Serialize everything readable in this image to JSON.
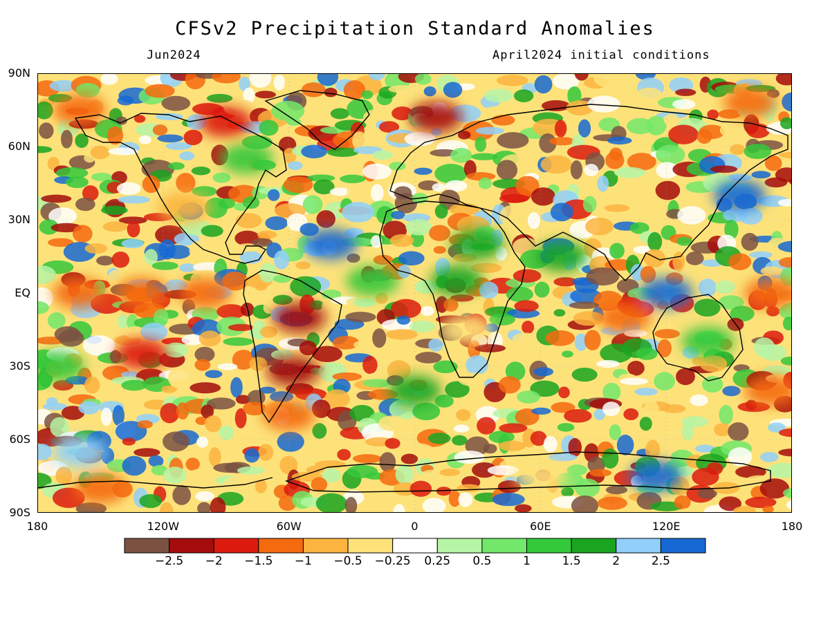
{
  "header": {
    "title": "CFSv2 Precipitation Standard Anomalies",
    "month": "Jun2024",
    "initial_conditions": "April2024 initial conditions"
  },
  "axes": {
    "lat_labels": [
      "90N",
      "60N",
      "30N",
      "EQ",
      "30S",
      "60S",
      "90S"
    ],
    "lat_values": [
      90,
      60,
      30,
      0,
      -30,
      -60,
      -90
    ],
    "lon_labels": [
      "180",
      "120W",
      "60W",
      "0",
      "60E",
      "120E",
      "180"
    ],
    "lon_values": [
      -180,
      -120,
      -60,
      0,
      60,
      120,
      180
    ]
  },
  "colorbar": {
    "colors": [
      "#7b5142",
      "#a50c0c",
      "#dc1b0e",
      "#f46a0f",
      "#fbb43f",
      "#fde27a",
      "#ffffff",
      "#b6f4a6",
      "#72e76a",
      "#34c83b",
      "#1aa521",
      "#90d0fb",
      "#1668d2"
    ],
    "tick_labels": [
      "−2.5",
      "−2",
      "−1.5",
      "−1",
      "−0.5",
      "−0.25",
      "0.25",
      "0.5",
      "1",
      "1.5",
      "2",
      "2.5"
    ]
  },
  "map_data": {
    "anomaly_regions": [
      {
        "lon": -160,
        "lat": 0,
        "v": -1.5
      },
      {
        "lon": -130,
        "lat": 0,
        "v": -1.5
      },
      {
        "lon": -100,
        "lat": 0,
        "v": -1.5
      },
      {
        "lon": 170,
        "lat": 0,
        "v": -1.5
      },
      {
        "lon": -55,
        "lat": -10,
        "v": -2.5
      },
      {
        "lon": -58,
        "lat": -32,
        "v": -2.5
      },
      {
        "lon": 10,
        "lat": 72,
        "v": -2.5
      },
      {
        "lon": -130,
        "lat": -25,
        "v": -2
      },
      {
        "lon": -90,
        "lat": 70,
        "v": -2
      },
      {
        "lon": -160,
        "lat": 75,
        "v": -1.5
      },
      {
        "lon": 160,
        "lat": 78,
        "v": -1.5
      },
      {
        "lon": 25,
        "lat": -15,
        "v": -0.5
      },
      {
        "lon": -110,
        "lat": 35,
        "v": -1
      },
      {
        "lon": 100,
        "lat": -10,
        "v": -1.5
      },
      {
        "lon": 170,
        "lat": -40,
        "v": -1.5
      },
      {
        "lon": -60,
        "lat": -50,
        "v": -1.5
      },
      {
        "lon": 60,
        "lat": -75,
        "v": -0.5
      },
      {
        "lon": -150,
        "lat": -80,
        "v": -1.5
      },
      {
        "lon": -40,
        "lat": 20,
        "v": 2.5
      },
      {
        "lon": 120,
        "lat": 0,
        "v": 2.5
      },
      {
        "lon": 115,
        "lat": -75,
        "v": 2.5
      },
      {
        "lon": 155,
        "lat": 40,
        "v": 2.5
      },
      {
        "lon": 30,
        "lat": 20,
        "v": 1.5
      },
      {
        "lon": 70,
        "lat": 15,
        "v": 1.5
      },
      {
        "lon": -160,
        "lat": -65,
        "v": 2
      },
      {
        "lon": -170,
        "lat": -30,
        "v": 1
      },
      {
        "lon": 20,
        "lat": 5,
        "v": 1.5
      },
      {
        "lon": -20,
        "lat": 5,
        "v": 1
      },
      {
        "lon": 140,
        "lat": -20,
        "v": 1
      },
      {
        "lon": 0,
        "lat": -40,
        "v": 1.5
      },
      {
        "lon": -80,
        "lat": 55,
        "v": 1
      }
    ]
  }
}
